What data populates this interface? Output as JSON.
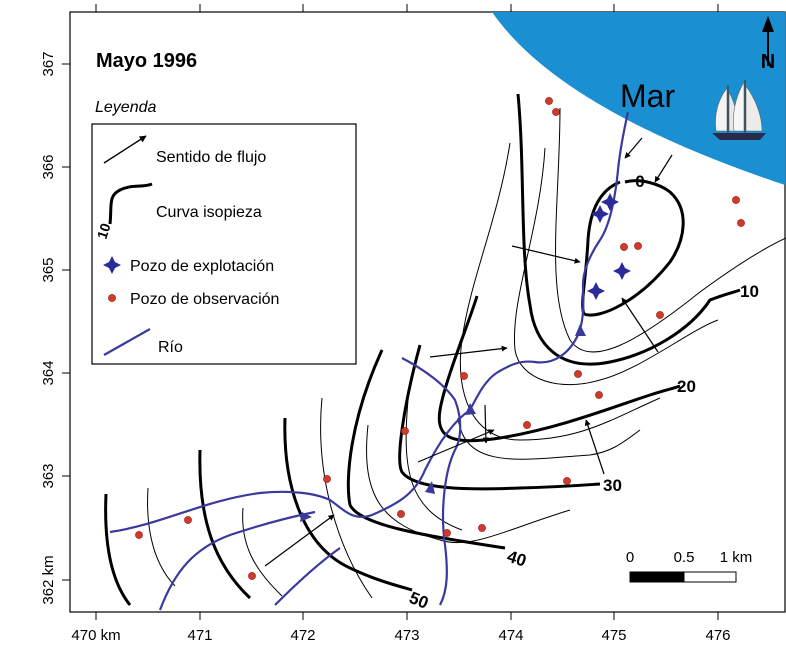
{
  "title": "Mayo 1996",
  "sea_label": "Mar",
  "north_label": "N",
  "legend": {
    "title": "Leyenda",
    "items": {
      "flow": "Sentido de flujo",
      "isopieza": "Curva isopieza",
      "isopieza_sample_value": "10",
      "well_exploitation": "Pozo de explotación",
      "well_observation": "Pozo de observación",
      "river": "Río"
    }
  },
  "contour_labels": [
    "0",
    "10",
    "20",
    "30",
    "40",
    "50"
  ],
  "x_ticks": [
    "470 km",
    "471",
    "472",
    "473",
    "474",
    "475",
    "476"
  ],
  "y_ticks": [
    "362 km",
    "363",
    "364",
    "365",
    "366",
    "367"
  ],
  "scale_bar": {
    "labels": [
      "0",
      "0.5",
      "1 km"
    ]
  },
  "colors": {
    "sea": "#1a8fd1",
    "river": "#3a3a9e",
    "exploitation_well": "#2a2a9a",
    "observation_well": "#d03a2a",
    "contour": "#000000"
  }
}
